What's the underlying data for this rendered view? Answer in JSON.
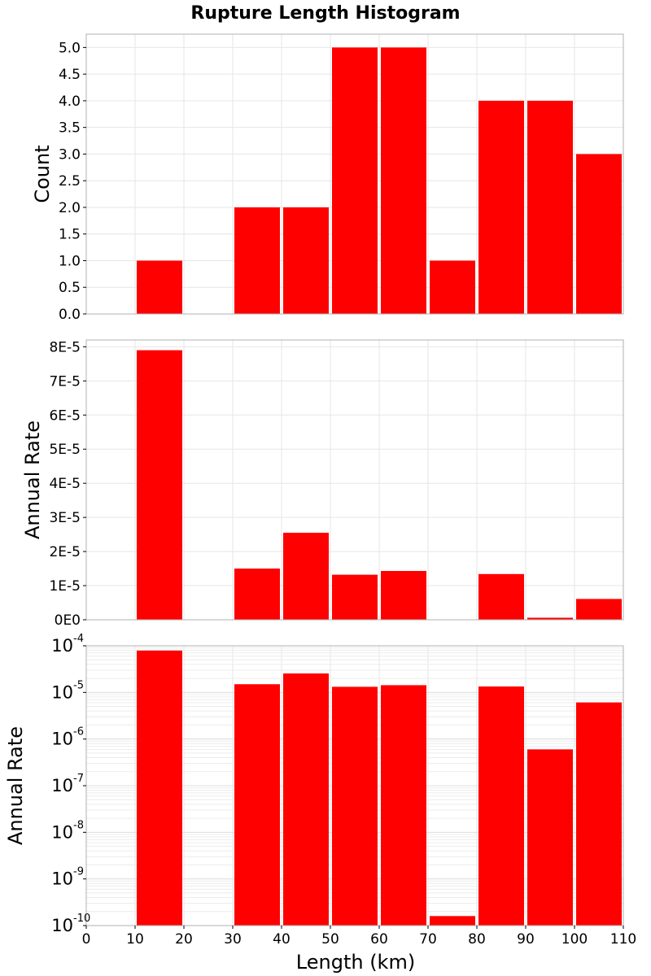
{
  "chart_data": [
    {
      "type": "bar",
      "panel": "top",
      "title": "Rupture Length Histogram",
      "xlabel": "Length (km)",
      "ylabel": "Count",
      "x_bin_centers": [
        5,
        15,
        25,
        35,
        45,
        55,
        65,
        75,
        85,
        95,
        105
      ],
      "bin_width": 10,
      "values": [
        0,
        1,
        0,
        2,
        2,
        5,
        5,
        1,
        4,
        4,
        3
      ],
      "xlim": [
        0,
        110
      ],
      "ylim": [
        0,
        5.25
      ],
      "yticks": [
        "0.0",
        "0.5",
        "1.0",
        "1.5",
        "2.0",
        "2.5",
        "3.0",
        "3.5",
        "4.0",
        "4.5",
        "5.0"
      ],
      "color": "#ff0000",
      "grid": true
    },
    {
      "type": "bar",
      "panel": "middle",
      "xlabel": "Length (km)",
      "ylabel": "Annual Rate",
      "x_bin_centers": [
        5,
        15,
        25,
        35,
        45,
        55,
        65,
        75,
        85,
        95,
        105
      ],
      "bin_width": 10,
      "values": [
        0,
        7.9e-05,
        0,
        1.5e-05,
        2.55e-05,
        1.32e-05,
        1.43e-05,
        1.6e-10,
        1.34e-05,
        6e-07,
        6.1e-06
      ],
      "xlim": [
        0,
        110
      ],
      "ylim": [
        0,
        8.2e-05
      ],
      "yticks": [
        "0E0",
        "1E-5",
        "2E-5",
        "3E-5",
        "4E-5",
        "5E-5",
        "6E-5",
        "7E-5",
        "8E-5"
      ],
      "color": "#ff0000",
      "grid": true
    },
    {
      "type": "bar",
      "panel": "bottom",
      "yscale": "log",
      "xlabel": "Length (km)",
      "ylabel": "Annual Rate",
      "x_bin_centers": [
        5,
        15,
        25,
        35,
        45,
        55,
        65,
        75,
        85,
        95,
        105
      ],
      "bin_width": 10,
      "values": [
        0,
        7.9e-05,
        0,
        1.5e-05,
        2.55e-05,
        1.32e-05,
        1.43e-05,
        1.6e-10,
        1.34e-05,
        6e-07,
        6.1e-06
      ],
      "xlim": [
        0,
        110
      ],
      "ylim": [
        1e-10,
        0.0001
      ],
      "ytick_base": "10",
      "ytick_exponents": [
        "-10",
        "-9",
        "-8",
        "-7",
        "-6",
        "-5",
        "-4"
      ],
      "xticks": [
        "0",
        "10",
        "20",
        "30",
        "40",
        "50",
        "60",
        "70",
        "80",
        "90",
        "100",
        "110"
      ],
      "color": "#ff0000",
      "grid": true
    }
  ]
}
